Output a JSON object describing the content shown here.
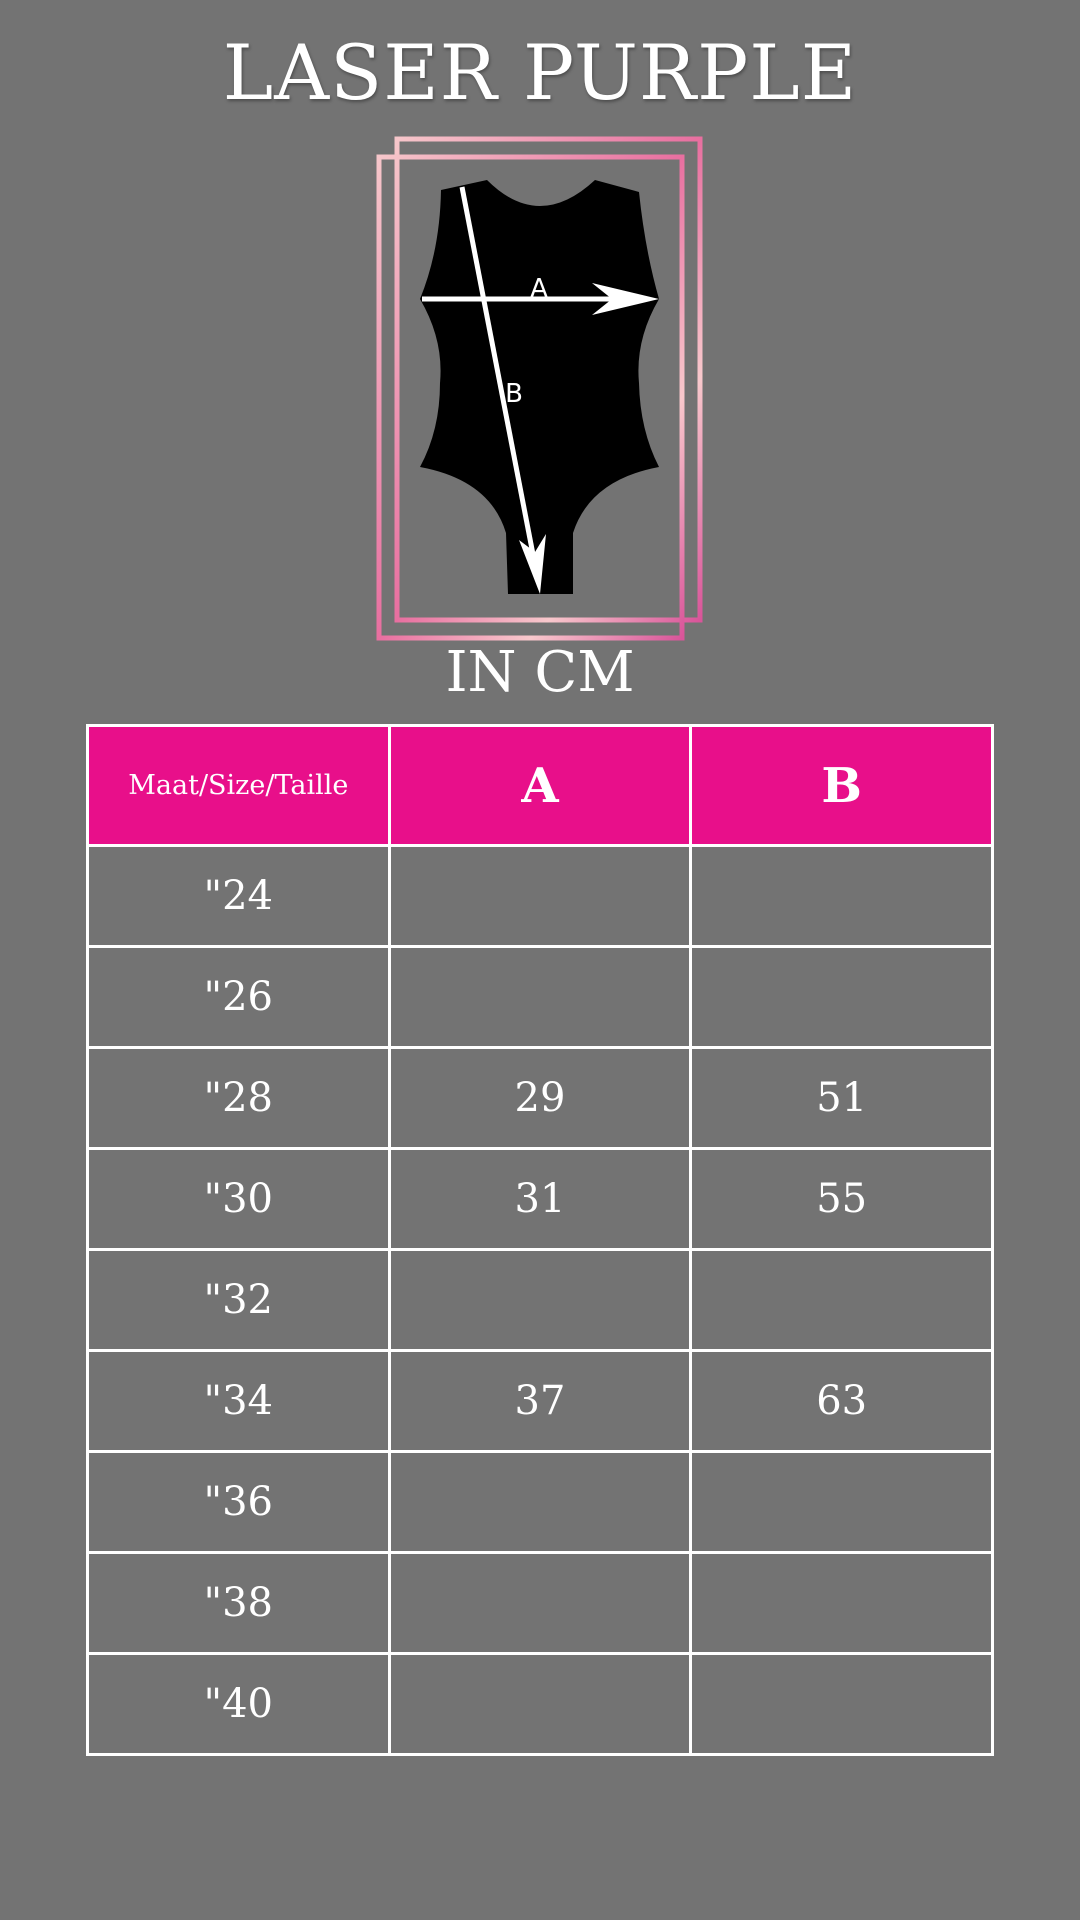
{
  "title": "LASER PURPLE",
  "unit_label": "IN CM",
  "diagram": {
    "label_a": "A",
    "label_b": "B",
    "frame_colors": [
      "#e0609a",
      "#f8c8cc"
    ]
  },
  "colors": {
    "background": "#737373",
    "header": "#e80f8a",
    "garment": "#000000"
  },
  "table": {
    "headers": [
      "Maat/Size/Taille",
      "A",
      "B"
    ],
    "rows": [
      {
        "size": "\"24",
        "a": "",
        "b": ""
      },
      {
        "size": "\"26",
        "a": "",
        "b": ""
      },
      {
        "size": "\"28",
        "a": "29",
        "b": "51"
      },
      {
        "size": "\"30",
        "a": "31",
        "b": "55"
      },
      {
        "size": "\"32",
        "a": "",
        "b": ""
      },
      {
        "size": "\"34",
        "a": "37",
        "b": "63"
      },
      {
        "size": "\"36",
        "a": "",
        "b": ""
      },
      {
        "size": "\"38",
        "a": "",
        "b": ""
      },
      {
        "size": "\"40",
        "a": "",
        "b": ""
      }
    ]
  }
}
